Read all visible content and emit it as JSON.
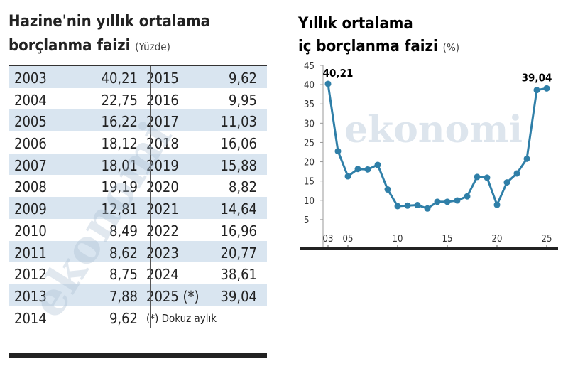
{
  "table": {
    "title": "Hazine'nin yıllık ortalama",
    "title_line2": "borçlanma faizi",
    "unit": "(Yüzde)",
    "rows": [
      [
        "2003",
        "40,21",
        "2015",
        "9,62"
      ],
      [
        "2004",
        "22,75",
        "2016",
        "9,95"
      ],
      [
        "2005",
        "16,22",
        "2017",
        "11,03"
      ],
      [
        "2006",
        "18,12",
        "2018",
        "16,06"
      ],
      [
        "2007",
        "18,01",
        "2019",
        "15,88"
      ],
      [
        "2008",
        "19,19",
        "2020",
        "8,82"
      ],
      [
        "2009",
        "12,81",
        "2021",
        "14,64"
      ],
      [
        "2010",
        "8,49",
        "2022",
        "16,96"
      ],
      [
        "2011",
        "8,62",
        "2023",
        "20,77"
      ],
      [
        "2012",
        "8,75",
        "2024",
        "38,61"
      ],
      [
        "2013",
        "7,88",
        "2025 (*)",
        "39,04"
      ],
      [
        "2014",
        "9,62"
      ]
    ],
    "footnote": "(*) Dokuz aylık",
    "watermark": "ekonomi"
  },
  "chart_data": {
    "type": "line",
    "title": "Yıllık ortalama",
    "subtitle": "iç borçlanma faizi",
    "unit": "(%)",
    "watermark": "ekonomi",
    "x": [
      3,
      4,
      5,
      6,
      7,
      8,
      9,
      10,
      11,
      12,
      13,
      14,
      15,
      16,
      17,
      18,
      19,
      20,
      21,
      22,
      23,
      24,
      25
    ],
    "series": [
      {
        "color": "#2f7fa8",
        "values": [
          40.21,
          22.75,
          16.22,
          18.12,
          18.01,
          19.19,
          12.81,
          8.49,
          8.62,
          8.75,
          7.88,
          9.62,
          9.62,
          9.95,
          11.03,
          16.06,
          15.88,
          8.82,
          14.64,
          16.96,
          20.77,
          38.61,
          39.04
        ],
        "value_labels": [
          "40,21",
          null,
          null,
          null,
          null,
          null,
          null,
          null,
          null,
          null,
          null,
          null,
          null,
          null,
          null,
          null,
          null,
          null,
          null,
          null,
          null,
          null,
          "39,04"
        ]
      }
    ],
    "xlim": [
      3,
      25
    ],
    "xticks": [
      {
        "value": 3,
        "label": "03"
      },
      {
        "value": 5,
        "label": "05"
      },
      10,
      15,
      20,
      25
    ],
    "ylim": [
      0,
      45
    ],
    "yticks": [
      5,
      10,
      15,
      20,
      25,
      30,
      35,
      40,
      45
    ]
  }
}
